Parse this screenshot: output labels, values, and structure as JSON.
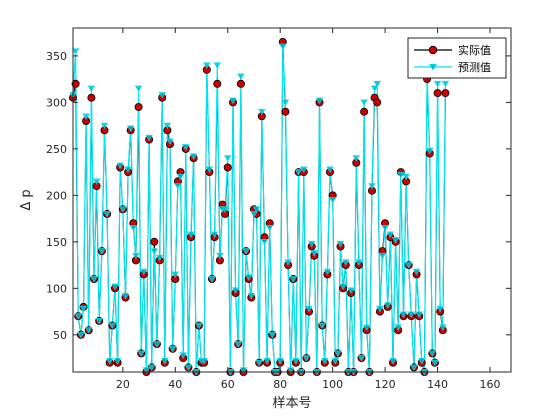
{
  "chart_data": {
    "type": "line",
    "title": "",
    "xlabel": "样本号",
    "ylabel": "Δ p",
    "xlim": [
      1,
      168
    ],
    "ylim": [
      10,
      380
    ],
    "xticks": [
      20,
      40,
      60,
      80,
      100,
      120,
      140,
      160
    ],
    "yticks": [
      50,
      100,
      150,
      200,
      250,
      300,
      350
    ],
    "grid": false,
    "legend_position": "top-right",
    "series": [
      {
        "name": "实际值",
        "color": "#000000",
        "marker": "circle",
        "marker_fill": "#cc0000",
        "values": [
          305,
          320,
          70,
          50,
          80,
          280,
          55,
          305,
          110,
          210,
          65,
          140,
          270,
          180,
          20,
          60,
          100,
          20,
          230,
          185,
          90,
          225,
          270,
          170,
          130,
          295,
          30,
          115,
          10,
          260,
          15,
          150,
          40,
          130,
          305,
          20,
          270,
          255,
          35,
          110,
          215,
          225,
          25,
          250,
          15,
          155,
          240,
          10,
          60,
          20,
          20,
          335,
          225,
          110,
          155,
          320,
          130,
          190,
          180,
          230,
          5,
          300,
          95,
          40,
          320,
          10,
          140,
          110,
          90,
          185,
          180,
          20,
          285,
          155,
          20,
          170,
          50,
          5,
          5,
          20,
          365,
          290,
          125,
          10,
          110,
          20,
          225,
          10,
          225,
          25,
          75,
          145,
          135,
          5,
          300,
          60,
          20,
          115,
          225,
          200,
          20,
          30,
          145,
          100,
          125,
          5,
          95,
          5,
          235,
          125,
          25,
          290,
          55,
          5,
          205,
          305,
          300,
          75,
          140,
          170,
          80,
          155,
          20,
          150,
          55,
          225,
          70,
          215,
          125,
          70,
          15,
          115,
          70,
          20,
          5,
          325,
          245,
          30,
          20,
          310,
          75,
          55,
          310
        ]
      },
      {
        "name": "预测值",
        "color": "#00e5ee",
        "marker": "triangle-down",
        "marker_fill": "#00bcd4",
        "values": [
          308,
          355,
          70,
          50,
          78,
          285,
          55,
          315,
          110,
          215,
          65,
          140,
          275,
          180,
          22,
          60,
          102,
          22,
          232,
          185,
          92,
          228,
          272,
          165,
          135,
          315,
          30,
          118,
          12,
          262,
          15,
          140,
          40,
          133,
          308,
          22,
          275,
          258,
          35,
          115,
          210,
          220,
          28,
          252,
          15,
          158,
          242,
          10,
          60,
          22,
          22,
          340,
          228,
          110,
          158,
          340,
          135,
          185,
          185,
          240,
          8,
          302,
          98,
          40,
          328,
          12,
          140,
          112,
          92,
          180,
          185,
          20,
          290,
          150,
          22,
          165,
          50,
          8,
          8,
          22,
          360,
          300,
          128,
          12,
          110,
          22,
          225,
          10,
          228,
          25,
          78,
          148,
          138,
          8,
          302,
          60,
          22,
          118,
          228,
          195,
          22,
          30,
          148,
          102,
          128,
          8,
          98,
          8,
          240,
          128,
          25,
          300,
          58,
          8,
          210,
          315,
          320,
          78,
          135,
          165,
          82,
          158,
          22,
          152,
          58,
          222,
          72,
          220,
          125,
          72,
          15,
          118,
          72,
          22,
          8,
          330,
          248,
          30,
          20,
          320,
          78,
          58,
          320
        ]
      }
    ]
  }
}
